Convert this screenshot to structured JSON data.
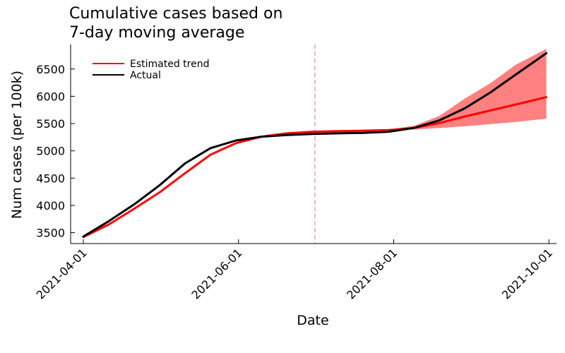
{
  "chart_data": {
    "type": "line",
    "title_lines": [
      "Cumulative cases based on",
      "7-day moving average"
    ],
    "xlabel": "Date",
    "ylabel": "Num cases (per 100k)",
    "xlim": [
      "2021-03-27",
      "2021-10-04"
    ],
    "ylim": [
      3300,
      6950
    ],
    "x_ticks": [
      "2021-04-01",
      "2021-06-01",
      "2021-08-01",
      "2021-10-01"
    ],
    "y_ticks": [
      3500,
      4000,
      4500,
      5000,
      5500,
      6000,
      6500
    ],
    "grid": false,
    "legend_position": "top-left",
    "forecast_start": "2021-07-01",
    "series": [
      {
        "name": "Estimated trend",
        "color": "#ff0000",
        "x": [
          "2021-04-01",
          "2021-04-11",
          "2021-04-21",
          "2021-05-01",
          "2021-05-11",
          "2021-05-21",
          "2021-05-31",
          "2021-06-10",
          "2021-06-20",
          "2021-06-30",
          "2021-07-10",
          "2021-07-20",
          "2021-07-30",
          "2021-08-09",
          "2021-08-19",
          "2021-08-29",
          "2021-09-08",
          "2021-09-18",
          "2021-09-30"
        ],
        "values": [
          3420,
          3650,
          3940,
          4240,
          4590,
          4930,
          5140,
          5260,
          5320,
          5350,
          5360,
          5370,
          5380,
          5420,
          5510,
          5630,
          5740,
          5850,
          5985
        ],
        "band_lower": [
          null,
          null,
          null,
          null,
          null,
          null,
          null,
          null,
          null,
          null,
          null,
          null,
          5385,
          5390,
          5420,
          5450,
          5490,
          5530,
          5590
        ],
        "band_upper": [
          null,
          null,
          null,
          null,
          null,
          null,
          null,
          null,
          null,
          null,
          null,
          null,
          5390,
          5460,
          5640,
          5960,
          6240,
          6580,
          6870
        ],
        "band_color": "#ff8080"
      },
      {
        "name": "Actual",
        "color": "#000000",
        "x": [
          "2021-04-01",
          "2021-04-11",
          "2021-04-21",
          "2021-05-01",
          "2021-05-11",
          "2021-05-21",
          "2021-05-31",
          "2021-06-10",
          "2021-06-20",
          "2021-06-30",
          "2021-07-10",
          "2021-07-20",
          "2021-07-30",
          "2021-08-09",
          "2021-08-19",
          "2021-08-29",
          "2021-09-08",
          "2021-09-18",
          "2021-09-30"
        ],
        "values": [
          3430,
          3710,
          4020,
          4370,
          4770,
          5050,
          5190,
          5260,
          5290,
          5310,
          5320,
          5330,
          5350,
          5420,
          5560,
          5780,
          6070,
          6400,
          6790
        ]
      }
    ]
  }
}
